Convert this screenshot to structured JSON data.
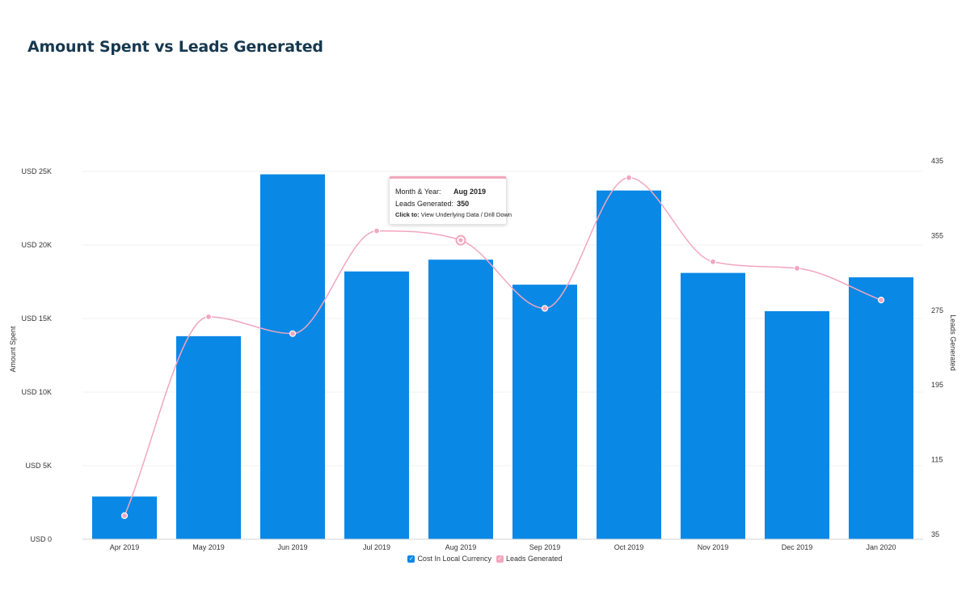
{
  "title": "Amount Spent vs Leads Generated",
  "colors": {
    "bars": "#0a88e6",
    "line": "#f2a6bd",
    "grid": "#f0f0f0",
    "title": "#17384f"
  },
  "chart_data": {
    "type": "bar",
    "categories": [
      "Apr 2019",
      "May 2019",
      "Jun 2019",
      "Jul 2019",
      "Aug 2019",
      "Sep 2019",
      "Oct 2019",
      "Nov 2019",
      "Dec 2019",
      "Jan 2020"
    ],
    "series": [
      {
        "name": "Cost In Local Currency",
        "type": "bar",
        "axis": "left",
        "values": [
          2900,
          13800,
          24800,
          18200,
          19000,
          17300,
          23700,
          18100,
          15500,
          17800
        ]
      },
      {
        "name": "Leads Generated",
        "type": "line",
        "axis": "right",
        "values": [
          55,
          268,
          250,
          360,
          350,
          277,
          417,
          327,
          320,
          286
        ]
      }
    ],
    "ylabel": "Amount Spent",
    "ylabel_right": "Leads Generated",
    "ylim": [
      0,
      25000
    ],
    "ylim_right": [
      35,
      435
    ],
    "yticks": [
      {
        "value": 0,
        "label": "USD 0"
      },
      {
        "value": 5000,
        "label": "USD 5K"
      },
      {
        "value": 10000,
        "label": "USD 10K"
      },
      {
        "value": 15000,
        "label": "USD 15K"
      },
      {
        "value": 20000,
        "label": "USD 20K"
      },
      {
        "value": 25000,
        "label": "USD 25K"
      }
    ],
    "yticks_right": [
      "35",
      "115",
      "195",
      "275",
      "355",
      "435"
    ],
    "legend_position": "bottom-center",
    "grid": true
  },
  "legend": [
    {
      "label": "Cost In Local Currency",
      "check": "✓"
    },
    {
      "label": "Leads Generated",
      "check": "✓"
    }
  ],
  "tooltip": {
    "month_key": "Month & Year:",
    "month_value": "Aug 2019",
    "leads_key": "Leads Generated:",
    "leads_value": "350",
    "click_key": "Click to:",
    "click_value": "View Underlying Data / Drill Down"
  }
}
